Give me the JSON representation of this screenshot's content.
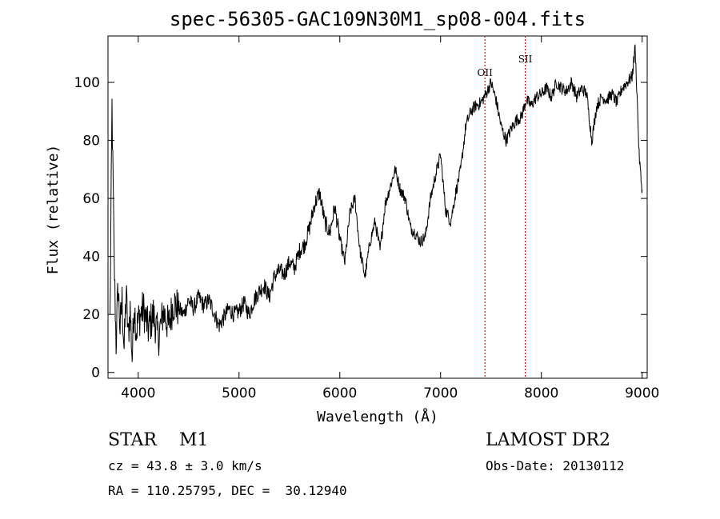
{
  "chart_data": {
    "type": "line",
    "title": "spec-56305-GAC109N30M1_sp08-004.fits",
    "xlabel": "Wavelength (Å)",
    "ylabel": "Flux (relative)",
    "xlim": [
      3700,
      9050
    ],
    "ylim": [
      -2,
      116
    ],
    "xticks": [
      4000,
      5000,
      6000,
      7000,
      8000,
      9000
    ],
    "yticks": [
      0,
      20,
      40,
      60,
      80,
      100
    ],
    "grid": false,
    "line_color": "#000000",
    "marker_color": "#aa2222",
    "lines": [
      {
        "name": "OII",
        "x": 7440
      },
      {
        "name": "SII",
        "x": 7840
      }
    ],
    "series": [
      {
        "x": [
          3720,
          3740,
          3760,
          3780,
          3800,
          3820,
          3840,
          3860,
          3880,
          3900,
          3920,
          3940,
          3960,
          3980,
          4000,
          4050,
          4100,
          4150,
          4200,
          4250,
          4300,
          4350,
          4400,
          4450,
          4500,
          4550,
          4600,
          4650,
          4700,
          4750,
          4800,
          4850,
          4900,
          4950,
          5000,
          5050,
          5100,
          5150,
          5200,
          5250,
          5300,
          5350,
          5400,
          5450,
          5500,
          5550,
          5600,
          5650,
          5700,
          5750,
          5800,
          5850,
          5900,
          5950,
          6000,
          6050,
          6100,
          6150,
          6200,
          6250,
          6300,
          6350,
          6400,
          6450,
          6500,
          6550,
          6600,
          6650,
          6700,
          6750,
          6800,
          6850,
          6900,
          6950,
          7000,
          7050,
          7100,
          7150,
          7200,
          7250,
          7300,
          7350,
          7400,
          7450,
          7500,
          7550,
          7600,
          7650,
          7700,
          7750,
          7800,
          7850,
          7900,
          7950,
          8000,
          8050,
          8100,
          8150,
          8200,
          8250,
          8300,
          8350,
          8400,
          8450,
          8500,
          8550,
          8600,
          8650,
          8700,
          8750,
          8800,
          8850,
          8900,
          8930,
          8950,
          8970,
          8990,
          9000
        ],
        "y": [
          18,
          92,
          40,
          10,
          30,
          15,
          25,
          8,
          28,
          12,
          22,
          5,
          24,
          14,
          18,
          22,
          15,
          20,
          12,
          21,
          16,
          24,
          22,
          20,
          25,
          22,
          26,
          23,
          25,
          21,
          16,
          19,
          22,
          20,
          21,
          24,
          20,
          25,
          28,
          30,
          26,
          33,
          35,
          34,
          38,
          36,
          42,
          44,
          50,
          58,
          62,
          52,
          48,
          57,
          46,
          38,
          55,
          60,
          42,
          33,
          45,
          52,
          42,
          58,
          64,
          70,
          63,
          60,
          50,
          48,
          45,
          47,
          60,
          68,
          75,
          56,
          52,
          62,
          70,
          85,
          90,
          92,
          93,
          96,
          100,
          94,
          85,
          80,
          84,
          87,
          88,
          94,
          92,
          95,
          96,
          98,
          95,
          100,
          98,
          97,
          100,
          95,
          98,
          96,
          80,
          92,
          95,
          94,
          96,
          93,
          98,
          100,
          102,
          112,
          95,
          75,
          66,
          63
        ]
      }
    ]
  },
  "object": {
    "class": "STAR",
    "subclass": "M1",
    "cz": "cz = 43.8 ± 3.0 km/s",
    "coords": "RA = 110.25795, DEC =  30.12940"
  },
  "survey": {
    "name": "LAMOST DR2",
    "obs_date": "Obs-Date: 20130112"
  }
}
